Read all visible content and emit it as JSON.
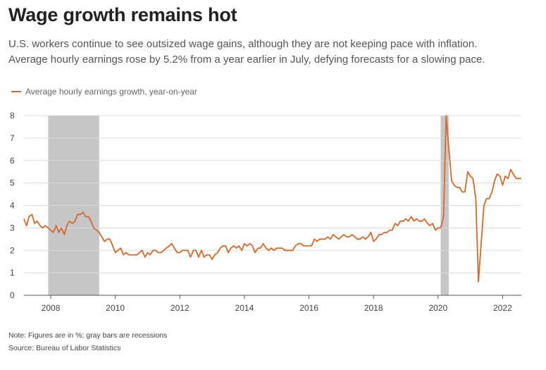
{
  "header": {
    "title": "Wage growth remains hot",
    "subtitle_line1": "U.S. workers continue to see outsized wage gains, although they are not keeping pace with inflation.",
    "subtitle_line2": "Average hourly earnings rose by 5.2% from a year earlier in July, defying forecasts for a slowing pace."
  },
  "legend": {
    "label": "Average hourly earnings growth, year-on-year"
  },
  "footer": {
    "note": "Note: Figures are in %; gray bars are recessions",
    "source": "Source: Bureau of Labor Statistics"
  },
  "colors": {
    "line": "#d4692c",
    "recession": "#c6c6c6",
    "grid": "#dcdcdc",
    "axis": "#555555"
  },
  "chart_data": {
    "type": "line",
    "title": "Wage growth remains hot",
    "ylim": [
      0,
      8
    ],
    "yticks": [
      0,
      1,
      2,
      3,
      4,
      5,
      6,
      7,
      8
    ],
    "xlim": [
      2007.17,
      2022.58
    ],
    "xticks": [
      2008,
      2010,
      2012,
      2014,
      2016,
      2018,
      2020,
      2022
    ],
    "grid": true,
    "legend_position": "top-left",
    "recessions": [
      [
        2007.92,
        2009.5
      ],
      [
        2020.08,
        2020.33
      ]
    ],
    "series": [
      {
        "name": "Average hourly earnings growth, year-on-year",
        "points": [
          [
            2007.17,
            3.4
          ],
          [
            2007.25,
            3.1
          ],
          [
            2007.33,
            3.5
          ],
          [
            2007.42,
            3.6
          ],
          [
            2007.5,
            3.2
          ],
          [
            2007.58,
            3.3
          ],
          [
            2007.67,
            3.1
          ],
          [
            2007.75,
            3.0
          ],
          [
            2007.83,
            3.1
          ],
          [
            2007.92,
            3.0
          ],
          [
            2008.0,
            2.9
          ],
          [
            2008.08,
            2.8
          ],
          [
            2008.17,
            3.1
          ],
          [
            2008.25,
            2.8
          ],
          [
            2008.33,
            3.0
          ],
          [
            2008.42,
            2.7
          ],
          [
            2008.5,
            3.1
          ],
          [
            2008.58,
            3.3
          ],
          [
            2008.67,
            3.2
          ],
          [
            2008.75,
            3.3
          ],
          [
            2008.83,
            3.6
          ],
          [
            2008.92,
            3.6
          ],
          [
            2009.0,
            3.7
          ],
          [
            2009.08,
            3.5
          ],
          [
            2009.17,
            3.5
          ],
          [
            2009.25,
            3.3
          ],
          [
            2009.33,
            3.0
          ],
          [
            2009.42,
            2.9
          ],
          [
            2009.5,
            2.8
          ],
          [
            2009.58,
            2.6
          ],
          [
            2009.67,
            2.4
          ],
          [
            2009.75,
            2.5
          ],
          [
            2009.83,
            2.5
          ],
          [
            2009.92,
            2.2
          ],
          [
            2010.0,
            1.9
          ],
          [
            2010.08,
            2.0
          ],
          [
            2010.17,
            2.1
          ],
          [
            2010.25,
            1.8
          ],
          [
            2010.33,
            1.9
          ],
          [
            2010.42,
            1.8
          ],
          [
            2010.5,
            1.8
          ],
          [
            2010.58,
            1.8
          ],
          [
            2010.67,
            1.8
          ],
          [
            2010.75,
            1.9
          ],
          [
            2010.83,
            2.0
          ],
          [
            2010.92,
            1.7
          ],
          [
            2011.0,
            1.9
          ],
          [
            2011.08,
            1.8
          ],
          [
            2011.17,
            2.0
          ],
          [
            2011.25,
            2.0
          ],
          [
            2011.33,
            1.9
          ],
          [
            2011.42,
            1.9
          ],
          [
            2011.5,
            2.0
          ],
          [
            2011.58,
            2.1
          ],
          [
            2011.67,
            2.2
          ],
          [
            2011.75,
            2.3
          ],
          [
            2011.83,
            2.1
          ],
          [
            2011.92,
            1.9
          ],
          [
            2012.0,
            1.9
          ],
          [
            2012.08,
            2.0
          ],
          [
            2012.17,
            2.0
          ],
          [
            2012.25,
            2.0
          ],
          [
            2012.33,
            1.7
          ],
          [
            2012.42,
            2.0
          ],
          [
            2012.5,
            2.0
          ],
          [
            2012.58,
            1.7
          ],
          [
            2012.67,
            2.0
          ],
          [
            2012.75,
            1.7
          ],
          [
            2012.83,
            1.8
          ],
          [
            2012.92,
            1.8
          ],
          [
            2013.0,
            1.6
          ],
          [
            2013.08,
            1.8
          ],
          [
            2013.17,
            1.9
          ],
          [
            2013.25,
            2.1
          ],
          [
            2013.33,
            2.2
          ],
          [
            2013.42,
            2.2
          ],
          [
            2013.5,
            1.9
          ],
          [
            2013.58,
            2.1
          ],
          [
            2013.67,
            2.2
          ],
          [
            2013.75,
            2.1
          ],
          [
            2013.83,
            2.2
          ],
          [
            2013.92,
            2.0
          ],
          [
            2014.0,
            2.3
          ],
          [
            2014.08,
            2.2
          ],
          [
            2014.17,
            2.3
          ],
          [
            2014.25,
            2.2
          ],
          [
            2014.33,
            1.9
          ],
          [
            2014.42,
            2.1
          ],
          [
            2014.5,
            2.1
          ],
          [
            2014.58,
            2.3
          ],
          [
            2014.67,
            2.1
          ],
          [
            2014.75,
            2.0
          ],
          [
            2014.83,
            2.1
          ],
          [
            2014.92,
            2.0
          ],
          [
            2015.0,
            2.1
          ],
          [
            2015.08,
            2.1
          ],
          [
            2015.17,
            2.1
          ],
          [
            2015.25,
            2.0
          ],
          [
            2015.33,
            2.0
          ],
          [
            2015.42,
            2.0
          ],
          [
            2015.5,
            2.0
          ],
          [
            2015.58,
            2.2
          ],
          [
            2015.67,
            2.3
          ],
          [
            2015.75,
            2.3
          ],
          [
            2015.83,
            2.2
          ],
          [
            2015.92,
            2.2
          ],
          [
            2016.0,
            2.2
          ],
          [
            2016.08,
            2.2
          ],
          [
            2016.17,
            2.5
          ],
          [
            2016.25,
            2.4
          ],
          [
            2016.33,
            2.5
          ],
          [
            2016.42,
            2.5
          ],
          [
            2016.5,
            2.5
          ],
          [
            2016.58,
            2.6
          ],
          [
            2016.67,
            2.5
          ],
          [
            2016.75,
            2.7
          ],
          [
            2016.83,
            2.6
          ],
          [
            2016.92,
            2.5
          ],
          [
            2017.0,
            2.6
          ],
          [
            2017.08,
            2.7
          ],
          [
            2017.17,
            2.6
          ],
          [
            2017.25,
            2.6
          ],
          [
            2017.33,
            2.7
          ],
          [
            2017.42,
            2.6
          ],
          [
            2017.5,
            2.5
          ],
          [
            2017.58,
            2.5
          ],
          [
            2017.67,
            2.6
          ],
          [
            2017.75,
            2.5
          ],
          [
            2017.83,
            2.6
          ],
          [
            2017.92,
            2.8
          ],
          [
            2018.0,
            2.4
          ],
          [
            2018.08,
            2.5
          ],
          [
            2018.17,
            2.7
          ],
          [
            2018.25,
            2.7
          ],
          [
            2018.33,
            2.8
          ],
          [
            2018.42,
            2.8
          ],
          [
            2018.5,
            2.9
          ],
          [
            2018.58,
            2.9
          ],
          [
            2018.67,
            3.2
          ],
          [
            2018.75,
            3.1
          ],
          [
            2018.83,
            3.3
          ],
          [
            2018.92,
            3.3
          ],
          [
            2019.0,
            3.4
          ],
          [
            2019.08,
            3.3
          ],
          [
            2019.17,
            3.5
          ],
          [
            2019.25,
            3.3
          ],
          [
            2019.33,
            3.4
          ],
          [
            2019.42,
            3.3
          ],
          [
            2019.5,
            3.3
          ],
          [
            2019.58,
            3.4
          ],
          [
            2019.67,
            3.2
          ],
          [
            2019.75,
            3.1
          ],
          [
            2019.83,
            3.2
          ],
          [
            2019.92,
            2.9
          ],
          [
            2020.0,
            3.0
          ],
          [
            2020.08,
            3.0
          ],
          [
            2020.17,
            3.5
          ],
          [
            2020.25,
            8.0
          ],
          [
            2020.33,
            6.6
          ],
          [
            2020.42,
            5.1
          ],
          [
            2020.5,
            4.9
          ],
          [
            2020.58,
            4.8
          ],
          [
            2020.67,
            4.8
          ],
          [
            2020.75,
            4.6
          ],
          [
            2020.83,
            4.6
          ],
          [
            2020.92,
            5.5
          ],
          [
            2021.0,
            5.3
          ],
          [
            2021.08,
            5.2
          ],
          [
            2021.17,
            4.3
          ],
          [
            2021.25,
            0.6
          ],
          [
            2021.33,
            2.2
          ],
          [
            2021.42,
            4.0
          ],
          [
            2021.5,
            4.3
          ],
          [
            2021.58,
            4.3
          ],
          [
            2021.67,
            4.6
          ],
          [
            2021.75,
            5.1
          ],
          [
            2021.83,
            5.4
          ],
          [
            2021.92,
            5.3
          ],
          [
            2022.0,
            4.9
          ],
          [
            2022.08,
            5.3
          ],
          [
            2022.17,
            5.2
          ],
          [
            2022.25,
            5.6
          ],
          [
            2022.33,
            5.4
          ],
          [
            2022.42,
            5.2
          ],
          [
            2022.5,
            5.2
          ],
          [
            2022.58,
            5.2
          ]
        ]
      }
    ]
  }
}
